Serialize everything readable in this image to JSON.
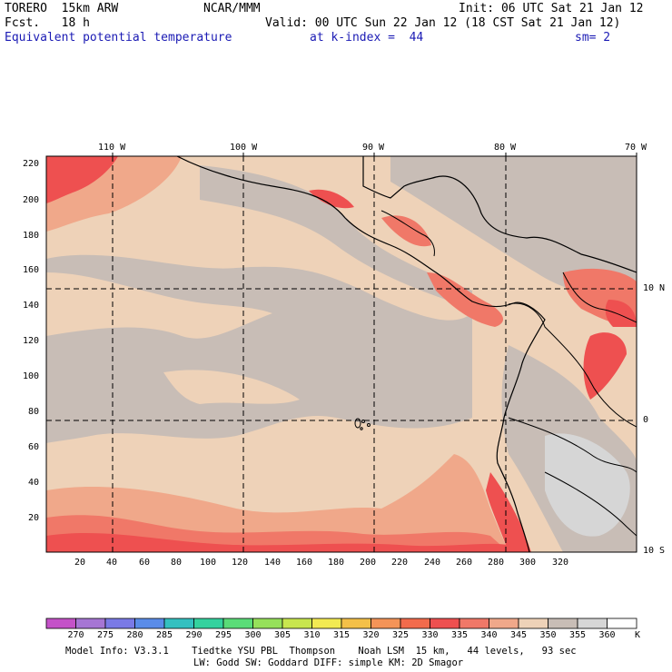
{
  "header": {
    "model": "TORERO  15km ARW",
    "org": "NCAR/MMM",
    "init": "Init: 06 UTC Sat 21 Jan 12",
    "fcst": "Fcst.   18 h",
    "valid": "Valid: 00 UTC Sun 22 Jan 12 (18 CST Sat 21 Jan 12)",
    "field": "Equivalent potential temperature",
    "level": "at k-index =  44",
    "smooth": "sm= 2"
  },
  "map": {
    "lon_labels": [
      "110 W",
      "100 W",
      "90 W",
      "80 W",
      "70 W"
    ],
    "lat_labels": [
      "10 N",
      "0",
      "10 S"
    ],
    "y_ticks": [
      "220",
      "200",
      "180",
      "160",
      "140",
      "120",
      "100",
      "80",
      "60",
      "40",
      "20"
    ],
    "x_ticks": [
      "20",
      "40",
      "60",
      "80",
      "100",
      "120",
      "140",
      "160",
      "180",
      "200",
      "220",
      "240",
      "260",
      "280",
      "300",
      "320"
    ]
  },
  "colorbar": {
    "unit": "K",
    "labels": [
      "270",
      "275",
      "280",
      "285",
      "290",
      "295",
      "300",
      "305",
      "310",
      "315",
      "320",
      "325",
      "330",
      "335",
      "340",
      "345",
      "350",
      "355",
      "360"
    ],
    "colors": [
      "#c452c8",
      "#a676d4",
      "#7a7ae6",
      "#5a8ce8",
      "#34c0c0",
      "#34d29e",
      "#5adc78",
      "#96e05a",
      "#c8e64e",
      "#f2ea52",
      "#f4c048",
      "#f49458",
      "#f26b4c",
      "#ee5050",
      "#f07868",
      "#f0a88a",
      "#eed2b8",
      "#c8bdb6",
      "#d6d6d6",
      "#ffffff"
    ]
  },
  "footer": {
    "line1": "Model Info: V3.3.1    Tiedtke YSU PBL  Thompson    Noah LSM  15 km,   44 levels,   93 sec",
    "line2": "LW: Godd SW: Goddard DIFF: simple KM: 2D Smagor"
  }
}
